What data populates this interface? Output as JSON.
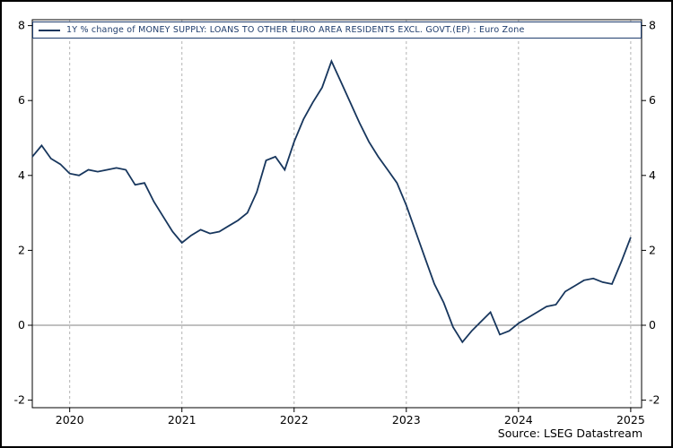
{
  "window": {
    "background": "#ffffff",
    "border_color": "#000000"
  },
  "legend": {
    "label": "1Y % change of MONEY SUPPLY: LOANS TO OTHER EURO AREA RESIDENTS EXCL. GOVT.(EP) : Euro Zone",
    "line_color": "#17365d"
  },
  "source": {
    "label": "Source: LSEG Datastream"
  },
  "chart_data": {
    "type": "line",
    "title": "",
    "xlabel": "",
    "ylabel": "",
    "legend_position": "top",
    "y_axis_sides": "both",
    "grid": {
      "vertical_dashed_at_year_starts": true,
      "zero_line": true
    },
    "ylim": [
      -2.2,
      8.2
    ],
    "y_ticks": [
      -2,
      0,
      2,
      4,
      6,
      8
    ],
    "x_tick_labels": [
      "2020",
      "2021",
      "2022",
      "2023",
      "2024",
      "2025"
    ],
    "series": [
      {
        "name": "1Y % change of MONEY SUPPLY: LOANS TO OTHER EURO AREA RESIDENTS EXCL. GOVT.(EP) : Euro Zone",
        "color": "#17365d",
        "x_start": "2019-09",
        "x_frequency": "monthly",
        "values": [
          4.5,
          4.8,
          4.45,
          4.3,
          4.05,
          4.0,
          4.15,
          4.1,
          4.15,
          4.2,
          4.15,
          3.75,
          3.8,
          3.3,
          2.9,
          2.5,
          2.2,
          2.4,
          2.55,
          2.45,
          2.5,
          2.65,
          2.8,
          3.0,
          3.55,
          4.4,
          4.5,
          4.15,
          4.9,
          5.5,
          5.95,
          6.35,
          7.05,
          6.5,
          5.95,
          5.4,
          4.9,
          4.5,
          4.15,
          3.8,
          3.2,
          2.5,
          1.8,
          1.1,
          0.6,
          -0.05,
          -0.45,
          -0.15,
          0.1,
          0.35,
          -0.25,
          -0.15,
          0.05,
          0.2,
          0.35,
          0.5,
          0.55,
          0.9,
          1.05,
          1.2,
          1.25,
          1.15,
          1.1,
          1.7,
          2.35
        ]
      }
    ]
  }
}
